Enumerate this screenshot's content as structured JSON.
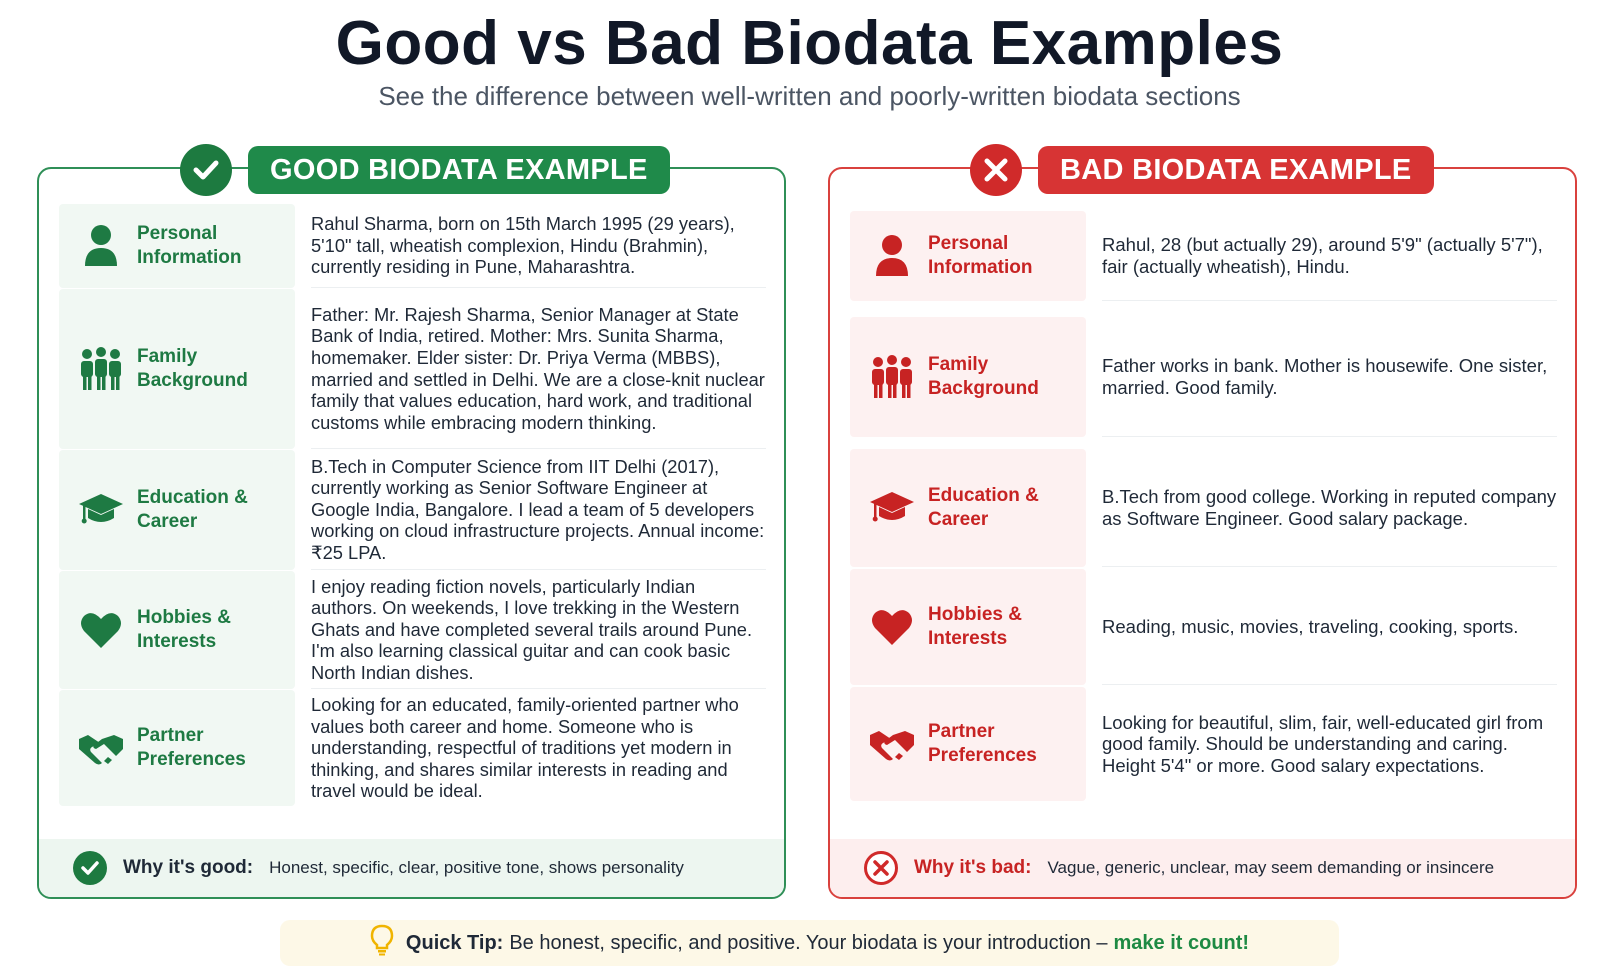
{
  "header": {
    "title": "Good vs Bad Biodata Examples",
    "subtitle": "See the difference between well-written and poorly-written biodata sections"
  },
  "colors": {
    "good": "#1f8a4a",
    "bad": "#d73434",
    "tip_bg": "#fdf8e7"
  },
  "good": {
    "badge": "GOOD BIODATA EXAMPLE",
    "badge_icon": "check-icon",
    "rows": [
      {
        "icon": "person-icon",
        "label": "Personal\nInformation",
        "text": "Rahul Sharma, born on 15th March 1995 (29 years), 5'10\" tall, wheatish complexion, Hindu (Brahmin), currently residing in Pune, Maharashtra."
      },
      {
        "icon": "family-icon",
        "label": "Family\nBackground",
        "text": "Father: Mr. Rajesh Sharma, Senior Manager at State Bank of India, retired. Mother: Mrs. Sunita Sharma, homemaker. Elder sister: Dr. Priya Verma (MBBS), married and settled in Delhi. We are a close-knit nuclear family that values education, hard work, and traditional customs while embracing modern thinking."
      },
      {
        "icon": "graduation-cap-icon",
        "label": "Education &\nCareer",
        "text": "B.Tech in Computer Science from IIT Delhi (2017), currently working as Senior Software Engineer at Google India, Bangalore. I lead a team of 5 developers working on cloud infrastructure projects. Annual income: ₹25 LPA."
      },
      {
        "icon": "heart-icon",
        "label": "Hobbies &\nInterests",
        "text": "I enjoy reading fiction novels, particularly Indian authors. On weekends, I love trekking in the Western Ghats and have completed several trails around Pune. I'm also learning classical guitar and can cook basic North Indian dishes."
      },
      {
        "icon": "handshake-icon",
        "label": "Partner\nPreferences",
        "text": "Looking for an educated, family-oriented partner who values both career and home. Someone who is understanding, respectful of traditions yet modern in thinking, and shares similar interests in reading and travel would be ideal."
      }
    ],
    "why_label": "Why it's good:",
    "why_text": "Honest, specific, clear, positive tone, shows personality"
  },
  "bad": {
    "badge": "BAD BIODATA EXAMPLE",
    "badge_icon": "x-icon",
    "rows": [
      {
        "icon": "person-icon",
        "label": "Personal\nInformation",
        "text": "Rahul, 28 (but actually 29), around 5'9\" (actually 5'7\"), fair (actually wheatish), Hindu."
      },
      {
        "icon": "family-icon",
        "label": "Family\nBackground",
        "text": "Father works in bank. Mother is housewife. One sister, married. Good family."
      },
      {
        "icon": "graduation-cap-icon",
        "label": "Education &\nCareer",
        "text": "B.Tech from good college. Working in reputed company as Software Engineer. Good salary package."
      },
      {
        "icon": "heart-icon",
        "label": "Hobbies &\nInterests",
        "text": "Reading, music, movies, traveling, cooking, sports."
      },
      {
        "icon": "handshake-icon",
        "label": "Partner\nPreferences",
        "text": "Looking for beautiful, slim, fair, well-educated girl from good family. Should be understanding and caring. Height 5'4\" or more. Good salary expectations."
      }
    ],
    "why_label": "Why it's bad:",
    "why_text": "Vague, generic, unclear, may seem demanding or insincere"
  },
  "tip": {
    "icon": "lightbulb-icon",
    "label": "Quick Tip:",
    "text": "Be honest, specific, and positive. Your biodata is your introduction –",
    "emphasis": "make it count!"
  }
}
